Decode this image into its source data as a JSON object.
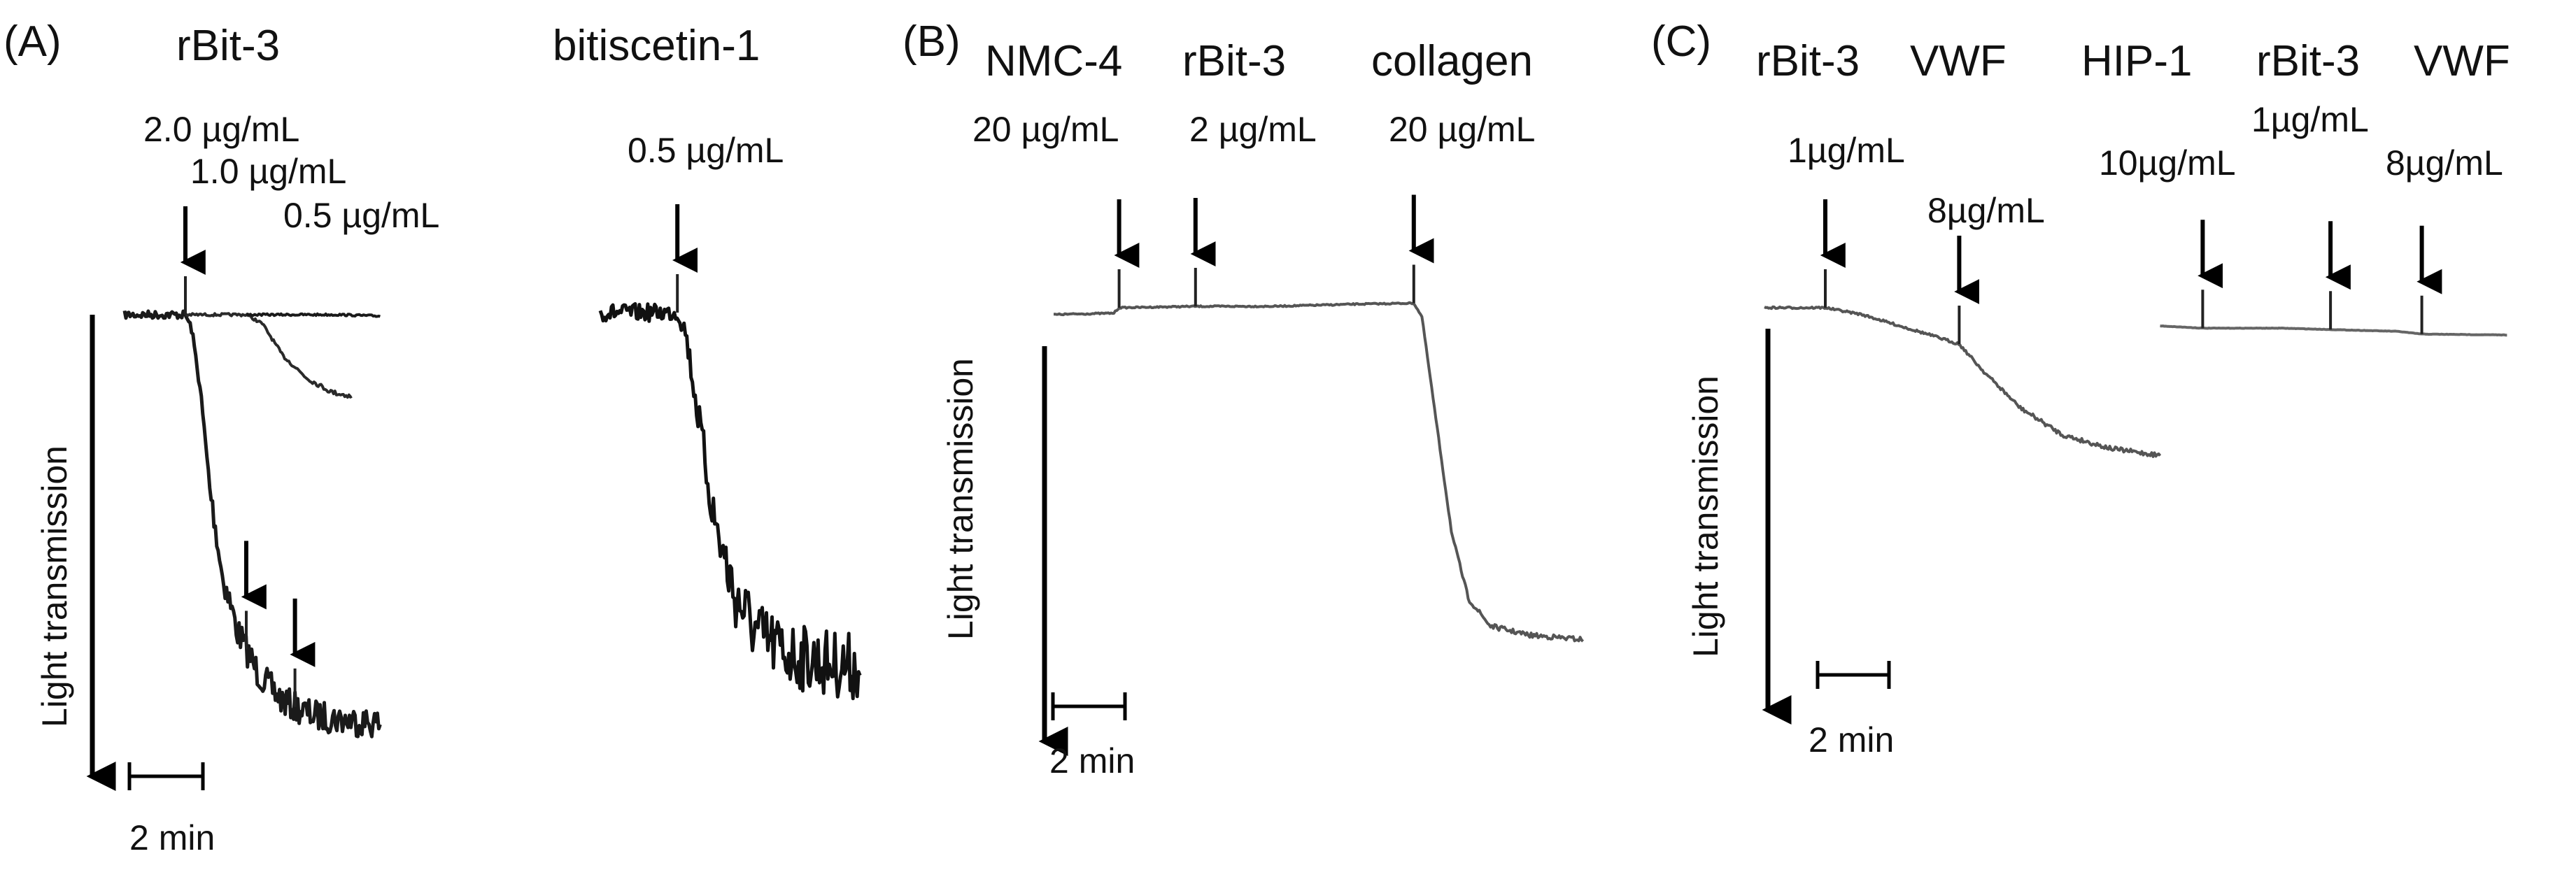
{
  "chart_data": [
    {
      "type": "line",
      "panel_label": "(A)",
      "ylabel": "Light transmission",
      "scale_bar": "2 min",
      "agents": [
        "rBit-3",
        "bitiscetin-1"
      ],
      "series": [
        {
          "group": 0,
          "points": [
            [
              0,
              0
            ],
            [
              1.5,
              0
            ],
            [
              1.65,
              0.03
            ],
            [
              1.85,
              0.15
            ],
            [
              2.1,
              0.38
            ],
            [
              2.4,
              0.57
            ],
            [
              2.8,
              0.7
            ],
            [
              3.3,
              0.79
            ],
            [
              3.9,
              0.85
            ],
            [
              4.6,
              0.88
            ],
            [
              5.3,
              0.89
            ],
            [
              6.3,
              0.9
            ]
          ],
          "noise": 0.025,
          "color": "#1a1a1a"
        },
        {
          "group": 0,
          "points": [
            [
              1.5,
              0
            ],
            [
              3.0,
              0
            ],
            [
              3.4,
              0.02
            ],
            [
              3.9,
              0.09
            ],
            [
              4.5,
              0.14
            ],
            [
              5.1,
              0.17
            ],
            [
              5.6,
              0.18
            ]
          ],
          "noise": 0.008,
          "color": "#2a2a2a"
        },
        {
          "group": 0,
          "points": [
            [
              3.0,
              0
            ],
            [
              4.2,
              0
            ],
            [
              5.3,
              0
            ],
            [
              6.3,
              0.003
            ]
          ],
          "noise": 0.006,
          "color": "#1a1a1a"
        },
        {
          "group": 1,
          "points": [
            [
              0,
              0
            ],
            [
              1.9,
              0
            ],
            [
              2.1,
              0.04
            ],
            [
              2.4,
              0.22
            ],
            [
              2.8,
              0.45
            ],
            [
              3.3,
              0.62
            ],
            [
              3.9,
              0.71
            ],
            [
              4.6,
              0.75
            ],
            [
              5.5,
              0.77
            ],
            [
              6.4,
              0.78
            ]
          ],
          "noise": 0.055,
          "color": "#111111"
        }
      ],
      "additions": [
        {
          "group": 0,
          "t": 1.5,
          "label": "2.0 µg/mL"
        },
        {
          "group": 0,
          "t": 3.0,
          "label": "1.0 µg/mL"
        },
        {
          "group": 0,
          "t": 4.2,
          "label": "0.5 µg/mL"
        },
        {
          "group": 1,
          "t": 1.9,
          "label": "0.5 µg/mL"
        }
      ]
    },
    {
      "type": "line",
      "panel_label": "(B)",
      "ylabel": "Light transmission",
      "scale_bar": "2 min",
      "agents": [
        "NMC-4",
        "rBit-3",
        "collagen"
      ],
      "series": [
        {
          "points": [
            [
              0,
              0.015
            ],
            [
              1.1,
              0.012
            ],
            [
              1.2,
              0
            ],
            [
              2.6,
              -0.003
            ],
            [
              4.0,
              -0.003
            ],
            [
              5.6,
              -0.008
            ],
            [
              6.6,
              -0.01
            ],
            [
              6.75,
              0.02
            ],
            [
              7.0,
              0.24
            ],
            [
              7.3,
              0.5
            ],
            [
              7.6,
              0.64
            ],
            [
              8.0,
              0.7
            ],
            [
              8.7,
              0.72
            ],
            [
              9.7,
              0.73
            ]
          ],
          "noise": 0.004,
          "color": "#555555"
        }
      ],
      "additions": [
        {
          "t": 1.2,
          "label": "20 µg/mL"
        },
        {
          "t": 2.6,
          "label": "2 µg/mL"
        },
        {
          "t": 6.6,
          "label": "20 µg/mL"
        }
      ]
    },
    {
      "type": "line",
      "panel_label": "(C)",
      "ylabel": "Light transmission",
      "scale_bar": "2 min",
      "agents": [
        "rBit-3",
        "VWF",
        "HIP-1",
        "rBit-3",
        "VWF"
      ],
      "series": [
        {
          "points": [
            [
              0,
              0
            ],
            [
              1.0,
              0
            ],
            [
              1.6,
              0.015
            ],
            [
              2.6,
              0.055
            ],
            [
              3.2,
              0.08
            ],
            [
              3.6,
              0.14
            ],
            [
              4.2,
              0.22
            ],
            [
              4.9,
              0.28
            ],
            [
              5.7,
              0.31
            ],
            [
              6.5,
              0.325
            ]
          ],
          "noise": 0.006,
          "color": "#555555"
        },
        {
          "points": [
            [
              6.5,
              0.04
            ],
            [
              7.2,
              0.045
            ],
            [
              8.5,
              0.045
            ],
            [
              9.3,
              0.048
            ],
            [
              10.4,
              0.052
            ],
            [
              10.8,
              0.058
            ],
            [
              12.2,
              0.06
            ]
          ],
          "noise": 0.001,
          "color": "#666666"
        }
      ],
      "additions": [
        {
          "t": 1.0,
          "label": "1µg/mL"
        },
        {
          "t": 3.2,
          "label": "8µg/mL"
        },
        {
          "t": 7.2,
          "label": "10µg/mL"
        },
        {
          "t": 9.3,
          "label": "1µg/mL"
        },
        {
          "t": 10.8,
          "label": "8µg/mL"
        }
      ]
    }
  ]
}
